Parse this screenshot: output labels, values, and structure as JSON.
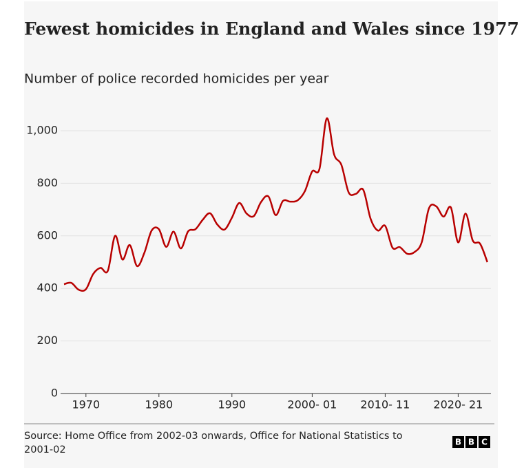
{
  "chart_data": {
    "type": "line",
    "title": "Fewest homicides in England and Wales since 1977",
    "subtitle": "Number of police recorded homicides per year",
    "source": "Source: Home Office from 2002-03 onwards, Office for National Statistics to 2001-02",
    "logo": [
      "B",
      "B",
      "C"
    ],
    "categories": [
      null,
      null,
      null,
      "1970",
      null,
      null,
      null,
      null,
      null,
      null,
      null,
      null,
      null,
      "1980",
      null,
      null,
      null,
      null,
      null,
      null,
      null,
      null,
      null,
      "1990",
      null,
      null,
      null,
      null,
      null,
      null,
      null,
      null,
      null,
      null,
      "2000- 01",
      null,
      null,
      null,
      null,
      null,
      null,
      null,
      null,
      null,
      "2010- 11",
      null,
      null,
      null,
      null,
      null,
      null,
      null,
      null,
      null,
      "2020- 21",
      null,
      null,
      null,
      null
    ],
    "series": [
      {
        "name": "Homicides",
        "color": "#b80000",
        "values": [
          416,
          421,
          395,
          397,
          455,
          478,
          467,
          600,
          510,
          565,
          485,
          535,
          620,
          625,
          558,
          616,
          552,
          617,
          625,
          661,
          686,
          643,
          624,
          669,
          725,
          685,
          675,
          729,
          750,
          679,
          733,
          730,
          735,
          770,
          845,
          855,
          1047,
          910,
          870,
          765,
          760,
          775,
          665,
          620,
          638,
          555,
          557,
          532,
          538,
          575,
          705,
          712,
          673,
          708,
          575,
          685,
          582,
          570,
          500
        ]
      }
    ],
    "ylim": [
      0,
      1000
    ],
    "yticks": [
      0,
      200,
      400,
      600,
      800,
      {
        "value": 1000,
        "label": "1,000"
      }
    ],
    "grid": true
  }
}
